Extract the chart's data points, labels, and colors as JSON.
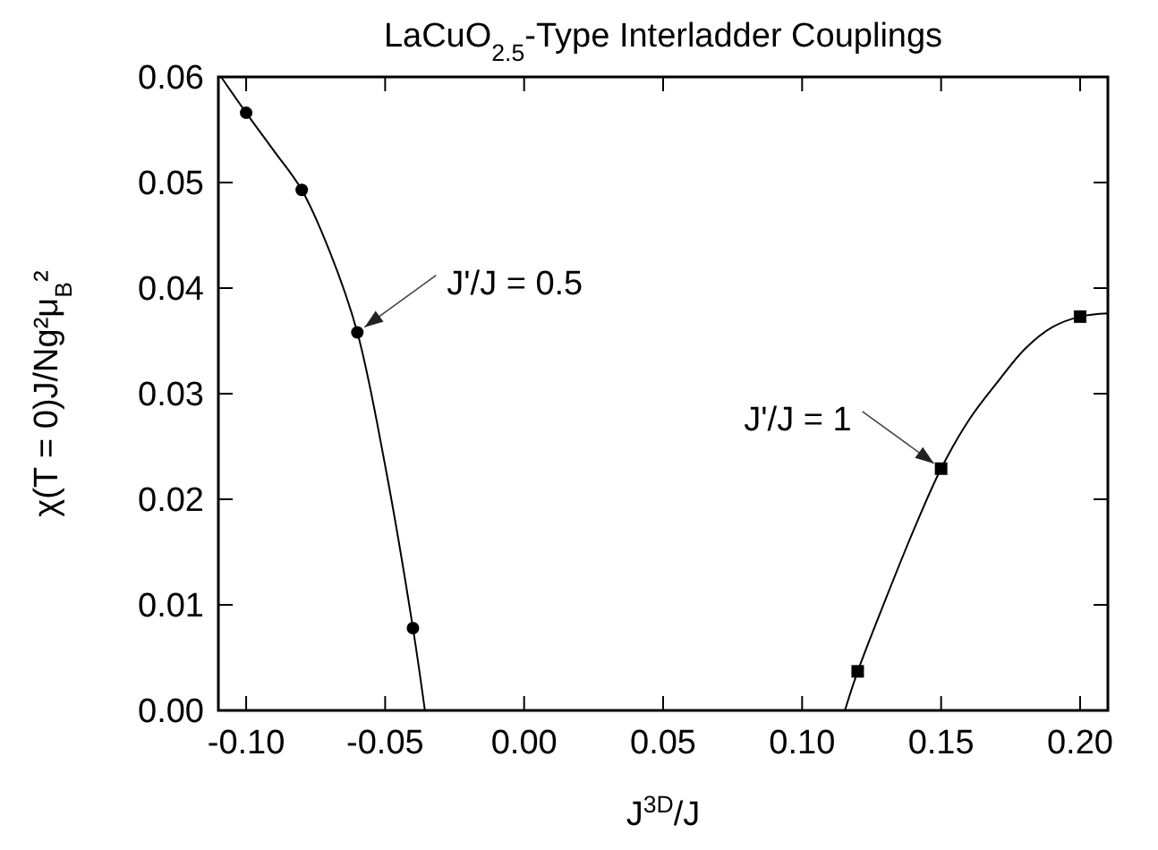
{
  "chart_data": {
    "type": "line",
    "title": "LaCuO$_{2.5}$-Type Interladder Couplings",
    "xlabel": "J$^{3D}$/J",
    "ylabel": "χ(T = 0)J/Ng²μ$_{B}$²",
    "xlim": [
      -0.11,
      0.21
    ],
    "xticks": [
      {
        "value": -0.1,
        "label": "-0.10"
      },
      {
        "value": -0.05,
        "label": "-0.05"
      },
      {
        "value": 0,
        "label": "0.00"
      },
      {
        "value": 0.05,
        "label": "0.05"
      },
      {
        "value": 0.1,
        "label": "0.10"
      },
      {
        "value": 0.15,
        "label": "0.15"
      },
      {
        "value": 0.2,
        "label": "0.20"
      }
    ],
    "ylim": [
      0,
      0.06
    ],
    "yticks": [
      {
        "value": 0,
        "label": "0.00"
      },
      {
        "value": 0.01,
        "label": "0.01"
      },
      {
        "value": 0.02,
        "label": "0.02"
      },
      {
        "value": 0.03,
        "label": "0.03"
      },
      {
        "value": 0.04,
        "label": "0.04"
      },
      {
        "value": 0.05,
        "label": "0.05"
      },
      {
        "value": 0.06,
        "label": "0.06"
      }
    ],
    "grid": false,
    "series": [
      {
        "color": "#000000",
        "marker": "none",
        "x": [
          -0.109,
          -0.1,
          -0.09,
          -0.08,
          -0.07,
          -0.06,
          -0.05,
          -0.04,
          -0.0357
        ],
        "values": [
          0.06,
          0.0566,
          0.053,
          0.0493,
          0.0435,
          0.0358,
          0.0232,
          0.0078,
          0
        ]
      },
      {
        "type": "scatter",
        "color": "#000000",
        "marker": "circle",
        "x": [
          -0.1,
          -0.08,
          -0.06,
          -0.04
        ],
        "values": [
          0.0566,
          0.0493,
          0.0358,
          0.0078
        ]
      },
      {
        "color": "#000000",
        "marker": "none",
        "x": [
          0.1154,
          0.12,
          0.13,
          0.14,
          0.15,
          0.16,
          0.17,
          0.18,
          0.19,
          0.2,
          0.21
        ],
        "values": [
          0,
          0.0037,
          0.0105,
          0.017,
          0.0229,
          0.0275,
          0.031,
          0.0342,
          0.0363,
          0.0373,
          0.0376
        ]
      },
      {
        "type": "scatter",
        "color": "#000000",
        "marker": "square",
        "x": [
          0.12,
          0.15,
          0.2
        ],
        "values": [
          0.0037,
          0.0229,
          0.0373
        ]
      }
    ],
    "annotations": [
      {
        "text": "J'/J = 0.5",
        "x": -0.06,
        "y": 0.0358
      },
      {
        "text": "J'/J = 1",
        "x": 0.15,
        "y": 0.0229
      }
    ]
  }
}
